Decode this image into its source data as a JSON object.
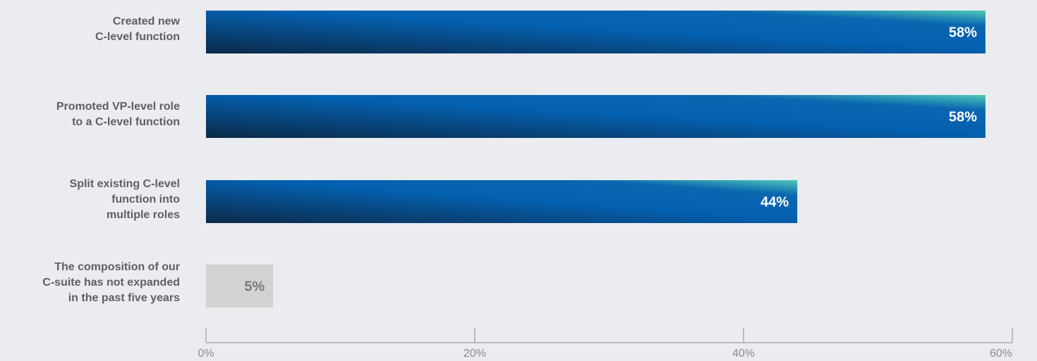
{
  "chart_data": {
    "type": "bar",
    "orientation": "horizontal",
    "categories": [
      "Created new\nC-level function",
      "Promoted VP-level role\nto a C-level function",
      "Split existing C-level\nfunction into\nmultiple roles",
      "The composition of our\nC-suite has not expanded\nin the past five years"
    ],
    "values": [
      58,
      58,
      44,
      5
    ],
    "value_labels": [
      "58%",
      "58%",
      "44%",
      "5%"
    ],
    "xlim": [
      0,
      60
    ],
    "x_ticks": [
      0,
      20,
      40,
      60
    ],
    "x_tick_labels": [
      "0%",
      "20%",
      "40%",
      "60%"
    ],
    "grid": false,
    "legend": "none",
    "colors": {
      "background": "#ebecf0",
      "bar_gradient": [
        "#0b2a49",
        "#0461b1",
        "#4dc9b8"
      ],
      "bar_muted": "#d2d2d2",
      "bar_label_on_dark": "#ffffff",
      "bar_label_on_muted": "#7a7a7a",
      "category_text": "#5e6066",
      "axis": "#8c8c8c"
    }
  }
}
